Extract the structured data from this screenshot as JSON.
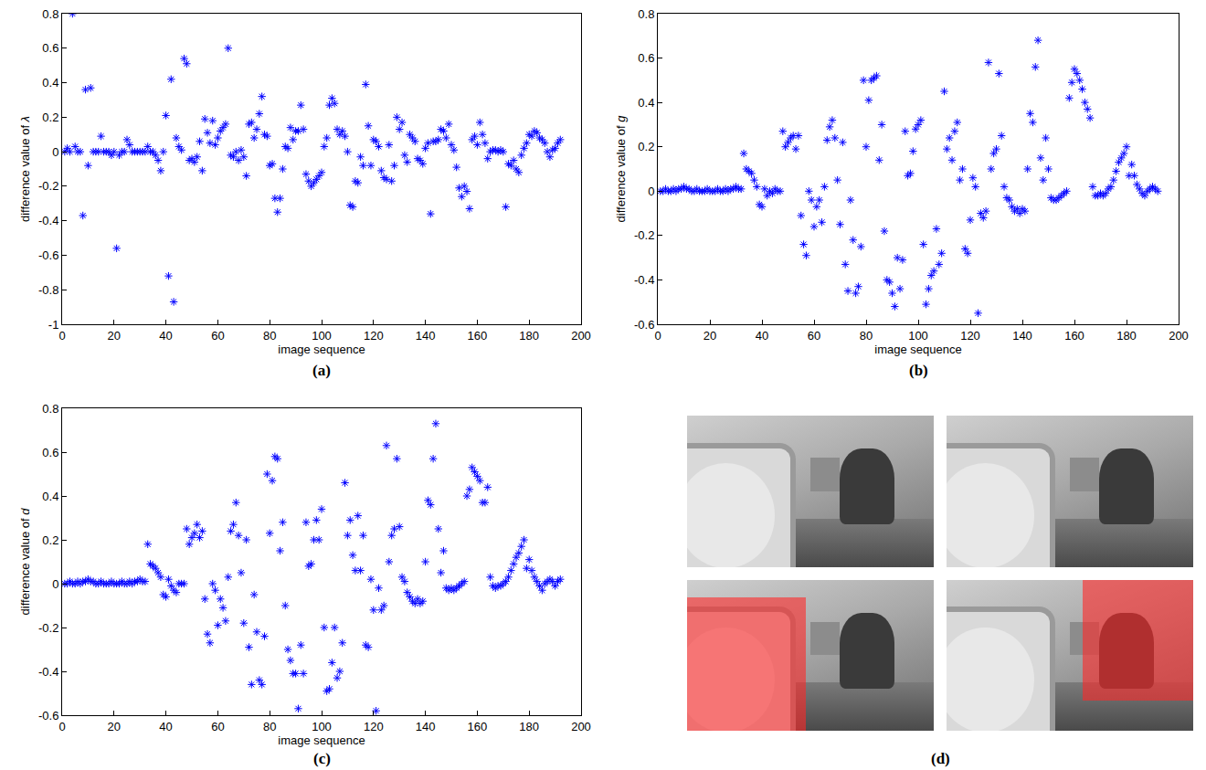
{
  "chart_data": [
    {
      "type": "scatter",
      "title": "(a)",
      "x_label": "image sequence",
      "y_label": "difference value of λ",
      "marker": "asterisk",
      "color": "#0000ff",
      "xlim": [
        0,
        200
      ],
      "xticks": [
        0,
        20,
        40,
        60,
        80,
        100,
        120,
        140,
        160,
        180,
        200
      ],
      "ylim": [
        -1,
        0.8
      ],
      "yticks": [
        -1,
        -0.8,
        -0.6,
        -0.4,
        -0.2,
        0,
        0.2,
        0.4,
        0.6,
        0.8
      ],
      "x": [
        1,
        2,
        3,
        4,
        5,
        6,
        7,
        8,
        9,
        10,
        11,
        12,
        13,
        14,
        15,
        16,
        17,
        18,
        19,
        20,
        21,
        22,
        23,
        24,
        25,
        26,
        27,
        28,
        29,
        30,
        31,
        32,
        33,
        34,
        35,
        36,
        37,
        38,
        39,
        40,
        41,
        42,
        43,
        44,
        45,
        46,
        47,
        48,
        49,
        50,
        51,
        52,
        53,
        54,
        55,
        56,
        57,
        58,
        59,
        60,
        61,
        62,
        63,
        64,
        65,
        66,
        67,
        68,
        69,
        70,
        71,
        72,
        73,
        74,
        75,
        76,
        77,
        78,
        79,
        80,
        81,
        82,
        83,
        84,
        85,
        86,
        87,
        88,
        89,
        90,
        91,
        92,
        93,
        94,
        95,
        96,
        97,
        98,
        99,
        100,
        101,
        102,
        103,
        104,
        105,
        106,
        107,
        108,
        109,
        110,
        111,
        112,
        113,
        114,
        115,
        116,
        117,
        118,
        119,
        120,
        121,
        122,
        123,
        124,
        125,
        126,
        127,
        128,
        129,
        130,
        131,
        132,
        133,
        134,
        135,
        136,
        137,
        138,
        139,
        140,
        141,
        142,
        143,
        144,
        145,
        146,
        147,
        148,
        149,
        150,
        151,
        152,
        153,
        154,
        155,
        156,
        157,
        158,
        159,
        160,
        161,
        162,
        163,
        164,
        165,
        166,
        167,
        168,
        169,
        170,
        171,
        172,
        173,
        174,
        175,
        176,
        177,
        178,
        179,
        180,
        181,
        182,
        183,
        184,
        185,
        186,
        187,
        188,
        189,
        190,
        191,
        192
      ],
      "values": [
        0,
        0.02,
        0,
        0.8,
        0.03,
        0,
        0,
        -0.37,
        0.36,
        -0.08,
        0.37,
        0,
        0,
        0,
        0.09,
        0,
        0,
        0,
        -0.02,
        0,
        -0.56,
        -0.02,
        0,
        0,
        0.07,
        0.04,
        0,
        0,
        0,
        0,
        0,
        0,
        0.03,
        0,
        0,
        -0.02,
        -0.05,
        -0.11,
        0,
        0.21,
        -0.72,
        0.42,
        -0.87,
        0.08,
        0.03,
        0.01,
        0.54,
        0.51,
        -0.05,
        -0.04,
        -0.06,
        -0.03,
        0.06,
        -0.11,
        0.19,
        0.11,
        0.05,
        0.18,
        0.04,
        0.08,
        0.12,
        0.14,
        0.16,
        0.6,
        -0.02,
        -0.03,
        0,
        -0.05,
        0.01,
        -0.03,
        -0.14,
        0.16,
        0.17,
        0.08,
        0.13,
        0.22,
        0.32,
        0.1,
        0.09,
        -0.08,
        -0.07,
        -0.27,
        -0.35,
        -0.27,
        -0.1,
        0.03,
        0.02,
        0.14,
        0.07,
        0.12,
        0.12,
        0.27,
        0.13,
        -0.13,
        -0.17,
        -0.2,
        -0.18,
        -0.16,
        -0.14,
        -0.12,
        0.03,
        0.08,
        0.27,
        0.31,
        0.28,
        0.13,
        0.1,
        0.12,
        0.09,
        0,
        -0.31,
        -0.32,
        -0.17,
        -0.18,
        -0.03,
        -0.08,
        0.39,
        0.15,
        -0.08,
        0.07,
        0.06,
        0.03,
        -0.11,
        -0.15,
        -0.16,
        0.04,
        -0.17,
        -0.08,
        0.2,
        0.13,
        0.17,
        -0.02,
        -0.06,
        0.1,
        0.08,
        0.06,
        -0.04,
        -0.05,
        -0.07,
        0.02,
        0.05,
        -0.36,
        0.06,
        0.06,
        0.07,
        0.13,
        0.12,
        0.08,
        0.16,
        0.04,
        0.01,
        -0.09,
        -0.21,
        -0.26,
        -0.2,
        -0.23,
        -0.33,
        0.07,
        0.09,
        0.04,
        0.17,
        0.1,
        0.05,
        -0.04,
        0,
        0.01,
        0.01,
        0,
        0.01,
        0,
        -0.32,
        -0.07,
        -0.08,
        -0.05,
        -0.1,
        -0.12,
        -0.02,
        0.02,
        0.05,
        0.1,
        0.09,
        0.12,
        0.11,
        0.08,
        0.07,
        0.05,
        0,
        -0.03,
        0.01,
        0.02,
        0.05,
        0.07
      ]
    },
    {
      "type": "scatter",
      "title": "(b)",
      "x_label": "image sequence",
      "y_label": "difference value of g",
      "marker": "asterisk",
      "color": "#0000ff",
      "xlim": [
        0,
        200
      ],
      "xticks": [
        0,
        20,
        40,
        60,
        80,
        100,
        120,
        140,
        160,
        180,
        200
      ],
      "ylim": [
        -0.6,
        0.8
      ],
      "yticks": [
        -0.6,
        -0.4,
        -0.2,
        0,
        0.2,
        0.4,
        0.6,
        0.8
      ],
      "x": [
        1,
        2,
        3,
        4,
        5,
        6,
        7,
        8,
        9,
        10,
        11,
        12,
        13,
        14,
        15,
        16,
        17,
        18,
        19,
        20,
        21,
        22,
        23,
        24,
        25,
        26,
        27,
        28,
        29,
        30,
        31,
        32,
        33,
        34,
        35,
        36,
        37,
        38,
        39,
        40,
        41,
        42,
        43,
        44,
        45,
        46,
        47,
        48,
        49,
        50,
        51,
        52,
        53,
        54,
        55,
        56,
        57,
        58,
        59,
        60,
        61,
        62,
        63,
        64,
        65,
        66,
        67,
        68,
        69,
        70,
        71,
        72,
        73,
        74,
        75,
        76,
        77,
        78,
        79,
        80,
        81,
        82,
        83,
        84,
        85,
        86,
        87,
        88,
        89,
        90,
        91,
        92,
        93,
        94,
        95,
        96,
        97,
        98,
        99,
        100,
        101,
        102,
        103,
        104,
        105,
        106,
        107,
        108,
        109,
        110,
        111,
        112,
        113,
        114,
        115,
        116,
        117,
        118,
        119,
        120,
        121,
        122,
        123,
        124,
        125,
        126,
        127,
        128,
        129,
        130,
        131,
        132,
        133,
        134,
        135,
        136,
        137,
        138,
        139,
        140,
        141,
        142,
        143,
        144,
        145,
        146,
        147,
        148,
        149,
        150,
        151,
        152,
        153,
        154,
        155,
        156,
        157,
        158,
        159,
        160,
        161,
        162,
        163,
        164,
        165,
        166,
        167,
        168,
        169,
        170,
        171,
        172,
        173,
        174,
        175,
        176,
        177,
        178,
        179,
        180,
        181,
        182,
        183,
        184,
        185,
        186,
        187,
        188,
        189,
        190,
        191,
        192
      ],
      "values": [
        0,
        0,
        0.01,
        0,
        0,
        0.01,
        0,
        0.01,
        0.01,
        0.02,
        0.01,
        0.01,
        0,
        0,
        0.01,
        0,
        0,
        0,
        0.01,
        0,
        0,
        0,
        0.01,
        0,
        0,
        0.01,
        0,
        0.01,
        0.01,
        0.02,
        0.01,
        0.01,
        0.17,
        0.1,
        0.09,
        0.08,
        0.05,
        0.02,
        -0.06,
        -0.07,
        0.01,
        -0.02,
        0,
        -0.01,
        0.01,
        0,
        0,
        0.27,
        0.2,
        0.22,
        0.24,
        0.25,
        0.19,
        0.25,
        -0.11,
        -0.24,
        -0.29,
        0,
        -0.04,
        -0.16,
        -0.07,
        -0.04,
        -0.14,
        0.02,
        0.23,
        0.29,
        0.32,
        0.24,
        0.05,
        -0.15,
        0.22,
        -0.33,
        -0.45,
        -0.04,
        -0.22,
        -0.46,
        -0.43,
        -0.25,
        0.5,
        0.2,
        0.41,
        0.5,
        0.51,
        0.52,
        0.14,
        0.3,
        -0.18,
        -0.4,
        -0.41,
        -0.46,
        -0.52,
        -0.3,
        -0.44,
        -0.31,
        0.27,
        0.07,
        0.08,
        0.18,
        0.28,
        0.3,
        0.32,
        -0.24,
        -0.51,
        -0.44,
        -0.38,
        -0.36,
        -0.17,
        -0.33,
        -0.28,
        0.45,
        0.19,
        0.24,
        0.14,
        0.27,
        0.31,
        0.05,
        0.1,
        -0.26,
        -0.28,
        -0.13,
        0.06,
        0.02,
        -0.55,
        -0.1,
        -0.12,
        -0.09,
        0.58,
        0.1,
        0.17,
        0.19,
        0.53,
        0.25,
        0.02,
        -0.03,
        -0.04,
        -0.07,
        -0.09,
        -0.08,
        -0.1,
        -0.08,
        -0.09,
        0.1,
        0.35,
        0.31,
        0.56,
        0.68,
        0.15,
        0.05,
        0.24,
        0.1,
        -0.03,
        -0.04,
        -0.04,
        -0.03,
        -0.02,
        -0.01,
        0,
        0.42,
        0.49,
        0.55,
        0.53,
        0.5,
        0.46,
        0.4,
        0.37,
        0.33,
        0.02,
        -0.02,
        -0.02,
        -0.01,
        -0.02,
        -0.01,
        0.01,
        0.02,
        0.05,
        0.09,
        0.13,
        0.15,
        0.17,
        0.2,
        0.07,
        0.12,
        0.07,
        0.03,
        0.01,
        -0.01,
        -0.02,
        0,
        0.01,
        0.02,
        0.01,
        0
      ]
    },
    {
      "type": "scatter",
      "title": "(c)",
      "x_label": "image sequence",
      "y_label": "difference value of d",
      "marker": "asterisk",
      "color": "#0000ff",
      "xlim": [
        0,
        200
      ],
      "xticks": [
        0,
        20,
        40,
        60,
        80,
        100,
        120,
        140,
        160,
        180,
        200
      ],
      "ylim": [
        -0.6,
        0.8
      ],
      "yticks": [
        -0.6,
        -0.4,
        -0.2,
        0,
        0.2,
        0.4,
        0.6,
        0.8
      ],
      "x": [
        1,
        2,
        3,
        4,
        5,
        6,
        7,
        8,
        9,
        10,
        11,
        12,
        13,
        14,
        15,
        16,
        17,
        18,
        19,
        20,
        21,
        22,
        23,
        24,
        25,
        26,
        27,
        28,
        29,
        30,
        31,
        32,
        33,
        34,
        35,
        36,
        37,
        38,
        39,
        40,
        41,
        42,
        43,
        44,
        45,
        46,
        47,
        48,
        49,
        50,
        51,
        52,
        53,
        54,
        55,
        56,
        57,
        58,
        59,
        60,
        61,
        62,
        63,
        64,
        65,
        66,
        67,
        68,
        69,
        70,
        71,
        72,
        73,
        74,
        75,
        76,
        77,
        78,
        79,
        80,
        81,
        82,
        83,
        84,
        85,
        86,
        87,
        88,
        89,
        90,
        91,
        92,
        93,
        94,
        95,
        96,
        97,
        98,
        99,
        100,
        101,
        102,
        103,
        104,
        105,
        106,
        107,
        108,
        109,
        110,
        111,
        112,
        113,
        114,
        115,
        116,
        117,
        118,
        119,
        120,
        121,
        122,
        123,
        124,
        125,
        126,
        127,
        128,
        129,
        130,
        131,
        132,
        133,
        134,
        135,
        136,
        137,
        138,
        139,
        140,
        141,
        142,
        143,
        144,
        145,
        146,
        147,
        148,
        149,
        150,
        151,
        152,
        153,
        154,
        155,
        156,
        157,
        158,
        159,
        160,
        161,
        162,
        163,
        164,
        165,
        166,
        167,
        168,
        169,
        170,
        171,
        172,
        173,
        174,
        175,
        176,
        177,
        178,
        179,
        180,
        181,
        182,
        183,
        184,
        185,
        186,
        187,
        188,
        189,
        190,
        191,
        192
      ],
      "values": [
        0,
        0,
        0.01,
        0,
        0,
        0.01,
        0,
        0.01,
        0.01,
        0.02,
        0.01,
        0.01,
        0,
        0,
        0.01,
        0,
        0,
        0,
        0.01,
        0,
        0,
        0,
        0.01,
        0,
        0,
        0.01,
        0,
        0.01,
        0.01,
        0.02,
        0.01,
        0.01,
        0.18,
        0.09,
        0.08,
        0.07,
        0.05,
        0.03,
        -0.05,
        -0.06,
        0.02,
        -0.01,
        -0.03,
        -0.04,
        0,
        0,
        0,
        0.25,
        0.18,
        0.21,
        0.23,
        0.27,
        0.21,
        0.24,
        -0.07,
        -0.23,
        -0.27,
        0,
        -0.03,
        -0.19,
        -0.07,
        -0.11,
        -0.17,
        0.03,
        0.24,
        0.27,
        0.37,
        0.22,
        0.05,
        -0.18,
        0.2,
        -0.29,
        -0.46,
        -0.05,
        -0.22,
        -0.44,
        -0.46,
        -0.24,
        0.5,
        0.23,
        0.47,
        0.58,
        0.57,
        0.15,
        0.28,
        -0.1,
        -0.3,
        -0.35,
        -0.41,
        -0.41,
        -0.57,
        -0.28,
        -0.41,
        0.28,
        0.08,
        0.09,
        0.2,
        0.29,
        0.2,
        0.34,
        -0.2,
        -0.49,
        -0.48,
        -0.36,
        -0.2,
        -0.43,
        -0.4,
        -0.27,
        0.46,
        0.22,
        0.29,
        0.13,
        0.06,
        0.31,
        0.06,
        0.22,
        -0.28,
        -0.29,
        0.02,
        -0.12,
        -0.58,
        -0.02,
        -0.12,
        -0.1,
        0.63,
        0.1,
        0.22,
        0.25,
        0.57,
        0.26,
        0.03,
        0.01,
        -0.04,
        -0.06,
        -0.08,
        -0.09,
        -0.07,
        -0.09,
        -0.08,
        0.1,
        0.38,
        0.36,
        0.57,
        0.73,
        0.25,
        0.05,
        0.15,
        -0.02,
        -0.03,
        -0.02,
        -0.03,
        -0.02,
        -0.01,
        0,
        0.01,
        0.4,
        0.43,
        0.53,
        0.51,
        0.49,
        0.47,
        0.37,
        0.37,
        0.44,
        0.03,
        -0.01,
        -0.02,
        -0.01,
        -0.01,
        0,
        0.01,
        0.03,
        0.06,
        0.09,
        0.12,
        0.14,
        0.17,
        0.2,
        0.07,
        0.11,
        0.06,
        0.03,
        0.01,
        -0.01,
        -0.03,
        0,
        0.01,
        0.02,
        0.01,
        -0.01,
        0.01,
        0.02
      ]
    },
    {
      "type": "image",
      "title": "(d)"
    }
  ]
}
